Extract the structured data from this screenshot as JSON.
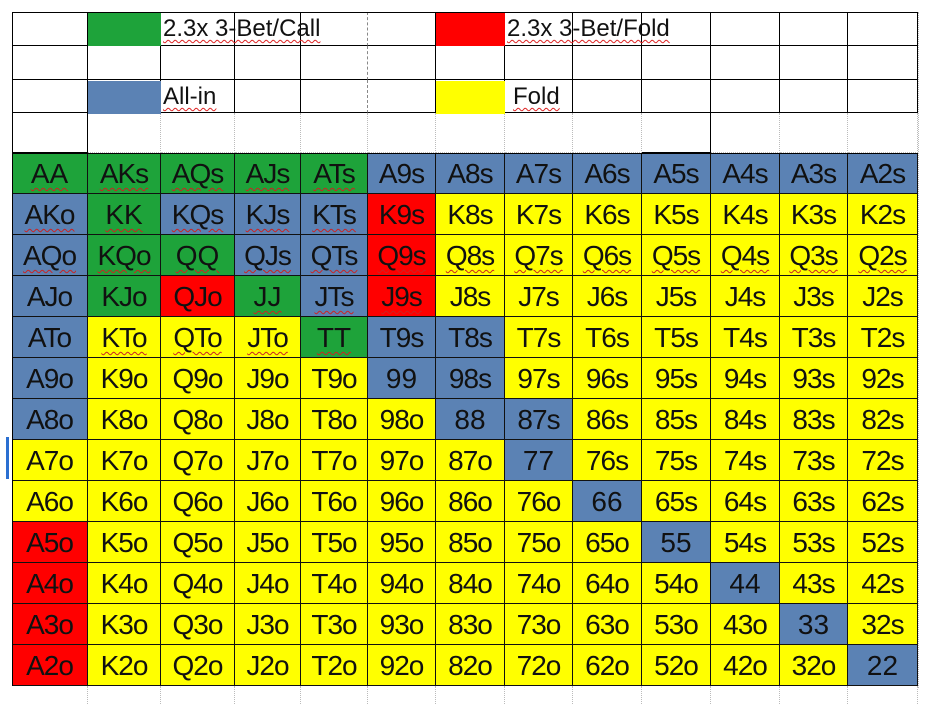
{
  "colors": {
    "call": "#1ea33a",
    "fold3bet": "#ff0000",
    "allin": "#5b82b4",
    "fold": "#ffff00"
  },
  "legend": [
    {
      "label": "2.3x 3-Bet/Call",
      "action": "call"
    },
    {
      "label": "2.3x 3-Bet/Fold",
      "action": "fold3bet"
    },
    {
      "label": "All-in",
      "action": "allin"
    },
    {
      "label": "Fold",
      "action": "fold"
    }
  ],
  "grid": {
    "rows": [
      [
        "AA",
        "AKs",
        "AQs",
        "AJs",
        "ATs",
        "A9s",
        "A8s",
        "A7s",
        "A6s",
        "A5s",
        "A4s",
        "A3s",
        "A2s"
      ],
      [
        "AKo",
        "KK",
        "KQs",
        "KJs",
        "KTs",
        "K9s",
        "K8s",
        "K7s",
        "K6s",
        "K5s",
        "K4s",
        "K3s",
        "K2s"
      ],
      [
        "AQo",
        "KQo",
        "QQ",
        "QJs",
        "QTs",
        "Q9s",
        "Q8s",
        "Q7s",
        "Q6s",
        "Q5s",
        "Q4s",
        "Q3s",
        "Q2s"
      ],
      [
        "AJo",
        "KJo",
        "QJo",
        "JJ",
        "JTs",
        "J9s",
        "J8s",
        "J7s",
        "J6s",
        "J5s",
        "J4s",
        "J3s",
        "J2s"
      ],
      [
        "ATo",
        "KTo",
        "QTo",
        "JTo",
        "TT",
        "T9s",
        "T8s",
        "T7s",
        "T6s",
        "T5s",
        "T4s",
        "T3s",
        "T2s"
      ],
      [
        "A9o",
        "K9o",
        "Q9o",
        "J9o",
        "T9o",
        "99",
        "98s",
        "97s",
        "96s",
        "95s",
        "94s",
        "93s",
        "92s"
      ],
      [
        "A8o",
        "K8o",
        "Q8o",
        "J8o",
        "T8o",
        "98o",
        "88",
        "87s",
        "86s",
        "85s",
        "84s",
        "83s",
        "82s"
      ],
      [
        "A7o",
        "K7o",
        "Q7o",
        "J7o",
        "T7o",
        "97o",
        "87o",
        "77",
        "76s",
        "75s",
        "74s",
        "73s",
        "72s"
      ],
      [
        "A6o",
        "K6o",
        "Q6o",
        "J6o",
        "T6o",
        "96o",
        "86o",
        "76o",
        "66",
        "65s",
        "64s",
        "63s",
        "62s"
      ],
      [
        "A5o",
        "K5o",
        "Q5o",
        "J5o",
        "T5o",
        "95o",
        "85o",
        "75o",
        "65o",
        "55",
        "54s",
        "53s",
        "52s"
      ],
      [
        "A4o",
        "K4o",
        "Q4o",
        "J4o",
        "T4o",
        "94o",
        "84o",
        "74o",
        "64o",
        "54o",
        "44",
        "43s",
        "42s"
      ],
      [
        "A3o",
        "K3o",
        "Q3o",
        "J3o",
        "T3o",
        "93o",
        "83o",
        "73o",
        "63o",
        "53o",
        "43o",
        "33",
        "32s"
      ],
      [
        "A2o",
        "K2o",
        "Q2o",
        "J2o",
        "T2o",
        "92o",
        "82o",
        "72o",
        "62o",
        "52o",
        "42o",
        "32o",
        "22"
      ]
    ],
    "actions": [
      [
        "C",
        "C",
        "C",
        "C",
        "C",
        "A",
        "A",
        "A",
        "A",
        "A",
        "A",
        "A",
        "A"
      ],
      [
        "A",
        "C",
        "A",
        "A",
        "A",
        "R",
        "F",
        "F",
        "F",
        "F",
        "F",
        "F",
        "F"
      ],
      [
        "A",
        "C",
        "C",
        "A",
        "A",
        "R",
        "F",
        "F",
        "F",
        "F",
        "F",
        "F",
        "F"
      ],
      [
        "A",
        "C",
        "R",
        "C",
        "A",
        "R",
        "F",
        "F",
        "F",
        "F",
        "F",
        "F",
        "F"
      ],
      [
        "A",
        "F",
        "F",
        "F",
        "C",
        "A",
        "A",
        "F",
        "F",
        "F",
        "F",
        "F",
        "F"
      ],
      [
        "A",
        "F",
        "F",
        "F",
        "F",
        "A",
        "A",
        "F",
        "F",
        "F",
        "F",
        "F",
        "F"
      ],
      [
        "A",
        "F",
        "F",
        "F",
        "F",
        "F",
        "A",
        "A",
        "F",
        "F",
        "F",
        "F",
        "F"
      ],
      [
        "F",
        "F",
        "F",
        "F",
        "F",
        "F",
        "F",
        "A",
        "F",
        "F",
        "F",
        "F",
        "F"
      ],
      [
        "F",
        "F",
        "F",
        "F",
        "F",
        "F",
        "F",
        "F",
        "A",
        "F",
        "F",
        "F",
        "F"
      ],
      [
        "R",
        "F",
        "F",
        "F",
        "F",
        "F",
        "F",
        "F",
        "F",
        "A",
        "F",
        "F",
        "F"
      ],
      [
        "R",
        "F",
        "F",
        "F",
        "F",
        "F",
        "F",
        "F",
        "F",
        "F",
        "A",
        "F",
        "F"
      ],
      [
        "R",
        "F",
        "F",
        "F",
        "F",
        "F",
        "F",
        "F",
        "F",
        "F",
        "F",
        "A",
        "F"
      ],
      [
        "R",
        "F",
        "F",
        "F",
        "F",
        "F",
        "F",
        "F",
        "F",
        "F",
        "F",
        "F",
        "A"
      ]
    ],
    "underlined": [
      "AA",
      "AKs",
      "AQs",
      "AJs",
      "ATs",
      "AKo",
      "KK",
      "KQs",
      "KJs",
      "KTs",
      "AQo",
      "KQo",
      "QQ",
      "QJs",
      "QTs",
      "Q9s",
      "Q8s",
      "Q7s",
      "Q6s",
      "Q5s",
      "Q4s",
      "Q3s",
      "Q2s",
      "JJ",
      "JTs",
      "J9s",
      "KTo",
      "QTo",
      "JTo",
      "TT"
    ]
  }
}
